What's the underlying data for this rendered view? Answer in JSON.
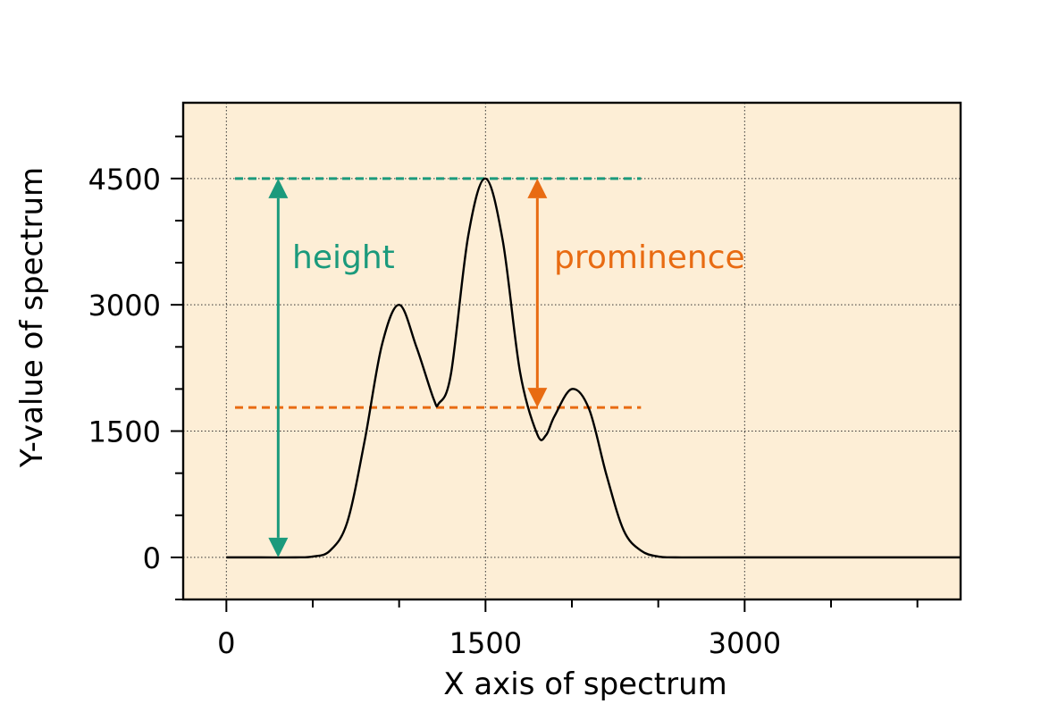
{
  "chart_data": {
    "type": "line",
    "xlabel": "X axis of spectrum",
    "ylabel": "Y-value of spectrum",
    "xlim": [
      -250,
      4250
    ],
    "ylim": [
      -500,
      5400
    ],
    "xticks": [
      0,
      1500,
      3000
    ],
    "yticks": [
      0,
      1500,
      3000,
      4500
    ],
    "x_minor_step": 500,
    "y_minor_step": 500,
    "grid": true,
    "background": "#fdeed6",
    "line_color": "#000000",
    "series": [
      {
        "x": [
          0,
          200,
          400,
          500,
          600,
          700,
          800,
          900,
          1000,
          1100,
          1200,
          1230,
          1300,
          1400,
          1500,
          1600,
          1700,
          1800,
          1850,
          1900,
          2000,
          2100,
          2200,
          2300,
          2400,
          2500,
          2600,
          3000,
          4250
        ],
        "y": [
          0,
          0,
          0,
          10,
          80,
          420,
          1380,
          2520,
          3000,
          2500,
          1880,
          1830,
          2180,
          3820,
          4500,
          3760,
          2200,
          1460,
          1450,
          1680,
          2000,
          1760,
          980,
          320,
          80,
          10,
          0,
          0,
          0
        ]
      }
    ],
    "annotations": {
      "height": {
        "label": "height",
        "color": "#1b9a7c",
        "x": 300,
        "from": 0,
        "to": 4500,
        "ref_line_y": 4500,
        "ref_line_x": [
          50,
          2400
        ]
      },
      "prominence": {
        "label": "prominence",
        "color": "#e86b12",
        "x": 1800,
        "from": 1780,
        "to": 4500,
        "ref_line_y": 1780,
        "ref_line_x": [
          50,
          2400
        ]
      }
    }
  }
}
